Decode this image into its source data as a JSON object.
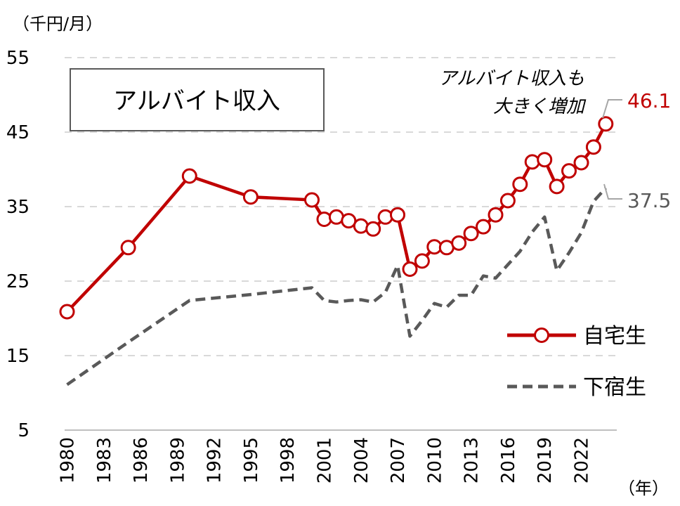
{
  "chart_data": {
    "type": "line",
    "title": "アルバイト収入",
    "ylabel": "（千円/月）",
    "xlabel": "（年）",
    "ylim": [
      5,
      55
    ],
    "yticks": [
      5,
      15,
      25,
      35,
      45,
      55
    ],
    "xticks": [
      1980,
      1983,
      1986,
      1989,
      1992,
      1995,
      1998,
      2001,
      2004,
      2007,
      2010,
      2013,
      2016,
      2019,
      2022
    ],
    "grid": true,
    "legend_position": "right",
    "annotation": [
      "アルバイト収入も",
      "大きく増加"
    ],
    "end_labels": {
      "自宅生": "46.1",
      "下宿生": "37.5"
    },
    "series": [
      {
        "name": "自宅生",
        "color": "#c00000",
        "style": "solid-marker",
        "points": [
          [
            1980,
            20.9
          ],
          [
            1985,
            29.5
          ],
          [
            1990,
            39.1
          ],
          [
            1995,
            36.3
          ],
          [
            2000,
            35.9
          ],
          [
            2001,
            33.3
          ],
          [
            2002,
            33.6
          ],
          [
            2003,
            33.1
          ],
          [
            2004,
            32.4
          ],
          [
            2005,
            32.0
          ],
          [
            2006,
            33.6
          ],
          [
            2007,
            33.9
          ],
          [
            2008,
            26.6
          ],
          [
            2009,
            27.7
          ],
          [
            2010,
            29.6
          ],
          [
            2011,
            29.5
          ],
          [
            2012,
            30.1
          ],
          [
            2013,
            31.4
          ],
          [
            2014,
            32.3
          ],
          [
            2015,
            33.9
          ],
          [
            2016,
            35.8
          ],
          [
            2017,
            38.0
          ],
          [
            2018,
            41.0
          ],
          [
            2019,
            41.3
          ],
          [
            2020,
            37.7
          ],
          [
            2021,
            39.8
          ],
          [
            2022,
            40.9
          ],
          [
            2023,
            43.0
          ],
          [
            2024,
            46.1
          ]
        ]
      },
      {
        "name": "下宿生",
        "color": "#595959",
        "style": "dashed",
        "points": [
          [
            1980,
            11.1
          ],
          [
            1985,
            16.8
          ],
          [
            1990,
            22.4
          ],
          [
            1995,
            23.2
          ],
          [
            2000,
            24.1
          ],
          [
            2001,
            22.4
          ],
          [
            2002,
            22.2
          ],
          [
            2003,
            22.4
          ],
          [
            2004,
            22.5
          ],
          [
            2005,
            22.2
          ],
          [
            2006,
            23.5
          ],
          [
            2007,
            27.1
          ],
          [
            2008,
            17.6
          ],
          [
            2009,
            19.7
          ],
          [
            2010,
            22.0
          ],
          [
            2011,
            21.5
          ],
          [
            2012,
            23.1
          ],
          [
            2013,
            23.1
          ],
          [
            2014,
            25.7
          ],
          [
            2015,
            25.4
          ],
          [
            2016,
            27.2
          ],
          [
            2017,
            29.0
          ],
          [
            2018,
            31.6
          ],
          [
            2019,
            33.6
          ],
          [
            2020,
            26.4
          ],
          [
            2021,
            28.8
          ],
          [
            2022,
            31.5
          ],
          [
            2023,
            35.7
          ],
          [
            2024,
            37.5
          ]
        ]
      }
    ]
  }
}
